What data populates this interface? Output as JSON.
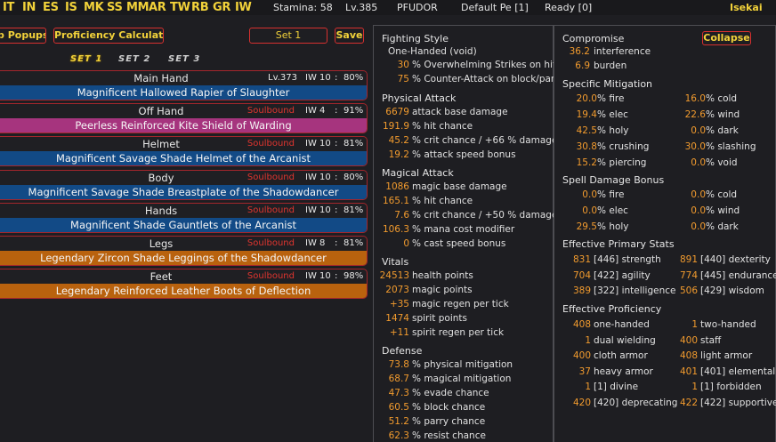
{
  "topbar": {
    "nav": [
      "IT",
      "IN",
      "ES",
      "IS",
      "MK",
      "SS",
      "MM",
      "AR",
      "TW",
      "RB",
      "GR",
      "IW"
    ],
    "stamina": "Stamina: 58",
    "level": "Lv.385",
    "server": "PFUDOR",
    "preset": "Default Pe [1]",
    "ready": "Ready [0]",
    "user": "Isekai"
  },
  "toolbar": {
    "popups_label": "p Popups",
    "prof_calc_label": "Proficiency Calculator",
    "set_input_value": "Set 1",
    "save_label": "Save"
  },
  "set_tabs": [
    "SET 1",
    "SET 2",
    "SET 3"
  ],
  "equipment": [
    {
      "slot": "Main Hand",
      "soulbound": "",
      "level": "Lv.373",
      "iw": "IW 10",
      "pct": "80%",
      "item": "Magnificent Hallowed Rapier of Slaughter",
      "color": "#124a86"
    },
    {
      "slot": "Off Hand",
      "soulbound": "Soulbound",
      "level": "",
      "iw": "IW 4",
      "pct": "91%",
      "item": "Peerless Reinforced Kite Shield of Warding",
      "color": "#a6347e"
    },
    {
      "slot": "Helmet",
      "soulbound": "Soulbound",
      "level": "",
      "iw": "IW 10",
      "pct": "81%",
      "item": "Magnificent Savage Shade Helmet of the Arcanist",
      "color": "#124a86"
    },
    {
      "slot": "Body",
      "soulbound": "Soulbound",
      "level": "",
      "iw": "IW 10",
      "pct": "80%",
      "item": "Magnificent Savage Shade Breastplate of the Shadowdancer",
      "color": "#124a86"
    },
    {
      "slot": "Hands",
      "soulbound": "Soulbound",
      "level": "",
      "iw": "IW 10",
      "pct": "81%",
      "item": "Magnificent Shade Gauntlets of the Arcanist",
      "color": "#124a86"
    },
    {
      "slot": "Legs",
      "soulbound": "Soulbound",
      "level": "",
      "iw": "IW 8",
      "pct": "81%",
      "item": "Legendary Zircon Shade Leggings of the Shadowdancer",
      "color": "#b9620e"
    },
    {
      "slot": "Feet",
      "soulbound": "Soulbound",
      "level": "",
      "iw": "IW 10",
      "pct": "98%",
      "item": "Legendary Reinforced Leather Boots of Deflection",
      "color": "#b9620e"
    }
  ],
  "fighting_style": {
    "title": "Fighting Style",
    "name": "One-Handed (void)",
    "lines": [
      {
        "n": "30",
        "t": "% Overwhelming Strikes on hit"
      },
      {
        "n": "75",
        "t": "% Counter-Attack on block/parry"
      }
    ]
  },
  "physical_attack": {
    "title": "Physical Attack",
    "lines": [
      {
        "n": "6679",
        "t": "attack base damage"
      },
      {
        "n": "191.9",
        "t": "% hit chance"
      },
      {
        "n": "45.2",
        "t": "% crit chance / +66 % damage"
      },
      {
        "n": "19.2",
        "t": "% attack speed bonus"
      }
    ]
  },
  "magical_attack": {
    "title": "Magical Attack",
    "lines": [
      {
        "n": "1086",
        "t": "magic base damage"
      },
      {
        "n": "165.1",
        "t": "% hit chance"
      },
      {
        "n": "7.6",
        "t": "% crit chance / +50 % damage"
      },
      {
        "n": "106.3",
        "t": "% mana cost modifier"
      },
      {
        "n": "0",
        "t": "% cast speed bonus"
      }
    ]
  },
  "vitals": {
    "title": "Vitals",
    "lines": [
      {
        "n": "24513",
        "t": "health points"
      },
      {
        "n": "2073",
        "t": "magic points"
      },
      {
        "n": "+35",
        "t": "magic regen per tick"
      },
      {
        "n": "1474",
        "t": "spirit points"
      },
      {
        "n": "+11",
        "t": "spirit regen per tick"
      }
    ]
  },
  "defense": {
    "title": "Defense",
    "lines": [
      {
        "n": "73.8",
        "t": "% physical mitigation"
      },
      {
        "n": "68.7",
        "t": "% magical mitigation"
      },
      {
        "n": "47.3",
        "t": "% evade chance"
      },
      {
        "n": "60.5",
        "t": "% block chance"
      },
      {
        "n": "51.2",
        "t": "% parry chance"
      },
      {
        "n": "62.3",
        "t": "% resist chance"
      }
    ]
  },
  "compromise": {
    "title": "Compromise",
    "collapse_label": "Collapse",
    "lines": [
      {
        "n": "36.2",
        "t": "interference"
      },
      {
        "n": "6.9",
        "t": "burden"
      }
    ]
  },
  "specific_mitigation": {
    "title": "Specific Mitigation",
    "pairs": [
      [
        {
          "n": "20.0",
          "t": "% fire"
        },
        {
          "n": "16.0",
          "t": "% cold"
        }
      ],
      [
        {
          "n": "19.4",
          "t": "% elec"
        },
        {
          "n": "22.6",
          "t": "% wind"
        }
      ],
      [
        {
          "n": "42.5",
          "t": "% holy"
        },
        {
          "n": "0.0",
          "t": "% dark"
        }
      ],
      [
        {
          "n": "30.8",
          "t": "% crushing"
        },
        {
          "n": "30.0",
          "t": "% slashing"
        }
      ],
      [
        {
          "n": "15.2",
          "t": "% piercing"
        },
        {
          "n": "0.0",
          "t": "% void"
        }
      ]
    ]
  },
  "spell_damage_bonus": {
    "title": "Spell Damage Bonus",
    "pairs": [
      [
        {
          "n": "0.0",
          "t": "% fire"
        },
        {
          "n": "0.0",
          "t": "% cold"
        }
      ],
      [
        {
          "n": "0.0",
          "t": "% elec"
        },
        {
          "n": "0.0",
          "t": "% wind"
        }
      ],
      [
        {
          "n": "29.5",
          "t": "% holy"
        },
        {
          "n": "0.0",
          "t": "% dark"
        }
      ]
    ]
  },
  "primary_stats": {
    "title": "Effective Primary Stats",
    "pairs": [
      [
        {
          "n": "831",
          "t": "[446] strength"
        },
        {
          "n": "891",
          "t": "[440] dexterity"
        }
      ],
      [
        {
          "n": "704",
          "t": "[422] agility"
        },
        {
          "n": "774",
          "t": "[445] endurance"
        }
      ],
      [
        {
          "n": "389",
          "t": "[322] intelligence"
        },
        {
          "n": "506",
          "t": "[429] wisdom"
        }
      ]
    ]
  },
  "proficiency": {
    "title": "Effective Proficiency",
    "pairs": [
      [
        {
          "n": "408",
          "t": "one-handed"
        },
        {
          "n": "1",
          "t": "two-handed"
        }
      ],
      [
        {
          "n": "1",
          "t": "dual wielding"
        },
        {
          "n": "400",
          "t": "staff"
        }
      ],
      [
        {
          "n": "400",
          "t": "cloth armor"
        },
        {
          "n": "408",
          "t": "light armor"
        }
      ],
      [
        {
          "n": "37",
          "t": "heavy armor"
        },
        {
          "n": "401",
          "t": "[401] elemental"
        }
      ],
      [
        {
          "n": "1",
          "t": "[1] divine"
        },
        {
          "n": "1",
          "t": "[1] forbidden"
        }
      ],
      [
        {
          "n": "420",
          "t": "[420] deprecating"
        },
        {
          "n": "422",
          "t": "[422] supportive"
        }
      ]
    ]
  }
}
